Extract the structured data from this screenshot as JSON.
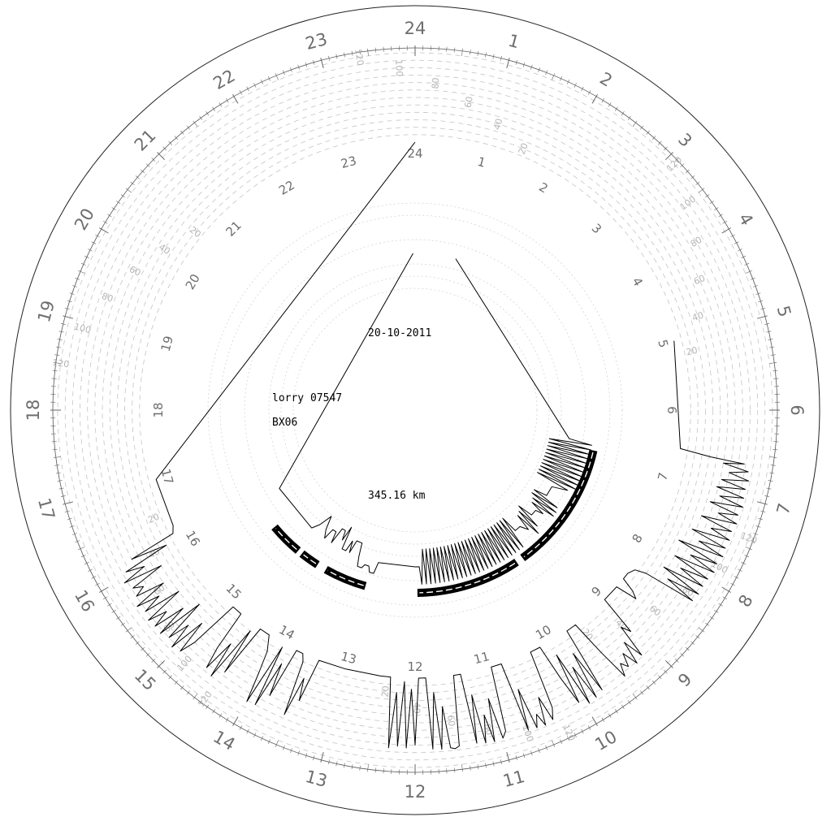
{
  "header": {
    "date": "20-10-2011"
  },
  "vehicle": {
    "name": "lorry 07547",
    "code": "BX06"
  },
  "summary": {
    "distance": "345.16 km"
  },
  "chart_data": {
    "type": "polar-line",
    "title": "",
    "time_axis": {
      "unit": "hour",
      "ticks": [
        1,
        2,
        3,
        4,
        5,
        6,
        7,
        8,
        9,
        10,
        11,
        12,
        13,
        14,
        15,
        16,
        17,
        18,
        19,
        20,
        21,
        22,
        23,
        24
      ]
    },
    "speed_axis": {
      "unit": "km/h",
      "range": [
        0,
        120
      ],
      "labels": [
        20,
        40,
        60,
        80,
        100,
        120
      ]
    },
    "series": [
      {
        "kind": "speed",
        "points": [
          [
            5.0,
            0
          ],
          [
            6.55,
            0
          ],
          [
            6.6,
            42
          ],
          [
            6.62,
            88
          ],
          [
            6.65,
            60
          ],
          [
            6.7,
            95
          ],
          [
            6.75,
            70
          ],
          [
            6.8,
            98
          ],
          [
            6.85,
            62
          ],
          [
            6.9,
            96
          ],
          [
            6.95,
            58
          ],
          [
            7.0,
            97
          ],
          [
            7.05,
            65
          ],
          [
            7.1,
            99
          ],
          [
            7.15,
            55
          ],
          [
            7.2,
            96
          ],
          [
            7.25,
            70
          ],
          [
            7.3,
            98
          ],
          [
            7.35,
            50
          ],
          [
            7.4,
            95
          ],
          [
            7.45,
            68
          ],
          [
            7.5,
            97
          ],
          [
            7.55,
            45
          ],
          [
            7.6,
            96
          ],
          [
            7.65,
            60
          ],
          [
            7.7,
            98
          ],
          [
            7.75,
            35
          ],
          [
            7.8,
            95
          ],
          [
            7.85,
            58
          ],
          [
            7.9,
            97
          ],
          [
            7.95,
            40
          ],
          [
            8.0,
            94
          ],
          [
            8.05,
            55
          ],
          [
            8.1,
            93
          ],
          [
            8.15,
            35
          ],
          [
            8.2,
            94
          ],
          [
            8.25,
            48
          ],
          [
            8.3,
            92
          ],
          [
            8.35,
            20
          ],
          [
            8.4,
            5
          ],
          [
            8.5,
            0
          ],
          [
            8.6,
            0
          ],
          [
            8.65,
            20
          ],
          [
            8.7,
            30
          ],
          [
            8.75,
            0
          ],
          [
            9.0,
            0
          ],
          [
            9.05,
            55
          ],
          [
            9.1,
            42
          ],
          [
            9.15,
            88
          ],
          [
            9.2,
            60
          ],
          [
            9.25,
            92
          ],
          [
            9.3,
            70
          ],
          [
            9.35,
            88
          ],
          [
            9.4,
            78
          ],
          [
            9.45,
            95
          ],
          [
            9.5,
            50
          ],
          [
            9.55,
            0
          ],
          [
            9.7,
            0
          ],
          [
            9.75,
            92
          ],
          [
            9.8,
            30
          ],
          [
            9.85,
            96
          ],
          [
            9.9,
            45
          ],
          [
            9.95,
            98
          ],
          [
            10.0,
            20
          ],
          [
            10.05,
            90
          ],
          [
            10.1,
            50
          ],
          [
            10.15,
            0
          ],
          [
            10.3,
            0
          ],
          [
            10.35,
            80
          ],
          [
            10.4,
            95
          ],
          [
            10.45,
            60
          ],
          [
            10.5,
            98
          ],
          [
            10.55,
            80
          ],
          [
            10.6,
            97
          ],
          [
            10.65,
            40
          ],
          [
            10.7,
            96
          ],
          [
            10.75,
            0
          ],
          [
            10.9,
            0
          ],
          [
            10.95,
            88
          ],
          [
            11.0,
            96
          ],
          [
            11.05,
            40
          ],
          [
            11.1,
            98
          ],
          [
            11.15,
            60
          ],
          [
            11.2,
            97
          ],
          [
            11.25,
            30
          ],
          [
            11.3,
            95
          ],
          [
            11.35,
            0
          ],
          [
            11.45,
            0
          ],
          [
            11.5,
            95
          ],
          [
            11.55,
            98
          ],
          [
            11.6,
            96
          ],
          [
            11.65,
            40
          ],
          [
            11.7,
            97
          ],
          [
            11.75,
            20
          ],
          [
            11.8,
            96
          ],
          [
            11.85,
            0
          ],
          [
            11.95,
            0
          ],
          [
            12.0,
            90
          ],
          [
            12.05,
            15
          ],
          [
            12.1,
            94
          ],
          [
            12.15,
            5
          ],
          [
            12.2,
            92
          ],
          [
            12.25,
            20
          ],
          [
            12.3,
            95
          ],
          [
            12.35,
            0
          ],
          [
            12.5,
            0
          ],
          [
            13.0,
            0
          ],
          [
            13.4,
            0
          ],
          [
            13.45,
            60
          ],
          [
            13.5,
            30
          ],
          [
            13.55,
            85
          ],
          [
            13.6,
            10
          ],
          [
            13.65,
            0
          ],
          [
            13.75,
            0
          ],
          [
            13.8,
            70
          ],
          [
            13.85,
            25
          ],
          [
            13.9,
            90
          ],
          [
            13.95,
            5
          ],
          [
            14.0,
            92
          ],
          [
            14.05,
            50
          ],
          [
            14.1,
            20
          ],
          [
            14.2,
            0
          ],
          [
            14.35,
            0
          ],
          [
            14.4,
            75
          ],
          [
            14.45,
            10
          ],
          [
            14.5,
            90
          ],
          [
            14.55,
            40
          ],
          [
            14.6,
            85
          ],
          [
            14.65,
            55
          ],
          [
            14.7,
            0
          ],
          [
            14.85,
            0
          ],
          [
            14.9,
            70
          ],
          [
            14.95,
            92
          ],
          [
            15.0,
            45
          ],
          [
            15.05,
            96
          ],
          [
            15.1,
            60
          ],
          [
            15.15,
            90
          ],
          [
            15.2,
            30
          ],
          [
            15.25,
            95
          ],
          [
            15.3,
            50
          ],
          [
            15.35,
            94
          ],
          [
            15.4,
            70
          ],
          [
            15.45,
            96
          ],
          [
            15.5,
            40
          ],
          [
            15.55,
            92
          ],
          [
            15.6,
            65
          ],
          [
            15.65,
            97
          ],
          [
            15.7,
            50
          ],
          [
            15.75,
            90
          ],
          [
            15.8,
            75
          ],
          [
            15.85,
            88
          ],
          [
            15.9,
            40
          ],
          [
            15.95,
            94
          ],
          [
            16.0,
            60
          ],
          [
            16.05,
            85
          ],
          [
            16.1,
            20
          ],
          [
            16.15,
            70
          ],
          [
            16.2,
            5
          ],
          [
            16.3,
            0
          ],
          [
            17.0,
            0
          ],
          [
            24.0,
            0
          ]
        ]
      },
      {
        "kind": "engine",
        "points": [
          [
            1.0,
            0
          ],
          [
            6.7,
            0
          ],
          [
            6.75,
            12
          ],
          [
            6.8,
            -10
          ],
          [
            6.85,
            12
          ],
          [
            6.9,
            -10
          ],
          [
            6.95,
            12
          ],
          [
            7.0,
            -10
          ],
          [
            7.05,
            12
          ],
          [
            7.1,
            -10
          ],
          [
            7.15,
            12
          ],
          [
            7.2,
            -10
          ],
          [
            7.25,
            12
          ],
          [
            7.3,
            -10
          ],
          [
            7.35,
            12
          ],
          [
            7.4,
            -10
          ],
          [
            7.45,
            12
          ],
          [
            7.5,
            -10
          ],
          [
            7.55,
            12
          ],
          [
            7.6,
            -10
          ],
          [
            7.65,
            12
          ],
          [
            7.7,
            -10
          ],
          [
            7.75,
            12
          ],
          [
            7.8,
            -10
          ],
          [
            7.85,
            8
          ],
          [
            7.95,
            0
          ],
          [
            8.2,
            0
          ],
          [
            8.25,
            -7
          ],
          [
            8.3,
            8
          ],
          [
            8.35,
            -7
          ],
          [
            8.4,
            9
          ],
          [
            8.45,
            -5
          ],
          [
            8.5,
            9
          ],
          [
            8.55,
            -4
          ],
          [
            8.6,
            4
          ],
          [
            8.65,
            0
          ],
          [
            8.8,
            0
          ],
          [
            8.85,
            -8
          ],
          [
            8.9,
            6
          ],
          [
            8.95,
            -6
          ],
          [
            9.0,
            9
          ],
          [
            9.05,
            -5
          ],
          [
            9.1,
            4
          ],
          [
            9.2,
            0
          ],
          [
            9.35,
            0
          ],
          [
            9.4,
            -9
          ],
          [
            9.45,
            9
          ],
          [
            9.5,
            -9
          ],
          [
            9.55,
            9
          ],
          [
            9.6,
            -9
          ],
          [
            9.65,
            9
          ],
          [
            9.7,
            -9
          ],
          [
            9.75,
            9
          ],
          [
            9.8,
            -9
          ],
          [
            9.85,
            9
          ],
          [
            9.9,
            -9
          ],
          [
            9.95,
            9
          ],
          [
            10.0,
            -9
          ],
          [
            10.05,
            9
          ],
          [
            10.1,
            -9
          ],
          [
            10.15,
            9
          ],
          [
            10.2,
            -9
          ],
          [
            10.25,
            9
          ],
          [
            10.3,
            -9
          ],
          [
            10.35,
            9
          ],
          [
            10.4,
            -9
          ],
          [
            10.45,
            9
          ],
          [
            10.5,
            -9
          ],
          [
            10.55,
            9
          ],
          [
            10.6,
            -9
          ],
          [
            10.65,
            9
          ],
          [
            10.7,
            -9
          ],
          [
            10.75,
            9
          ],
          [
            10.8,
            -9
          ],
          [
            10.85,
            9
          ],
          [
            10.9,
            -9
          ],
          [
            10.95,
            9
          ],
          [
            11.0,
            -9
          ],
          [
            11.05,
            9
          ],
          [
            11.1,
            -9
          ],
          [
            11.15,
            9
          ],
          [
            11.2,
            -9
          ],
          [
            11.25,
            9
          ],
          [
            11.3,
            -9
          ],
          [
            11.35,
            9
          ],
          [
            11.4,
            -9
          ],
          [
            11.45,
            9
          ],
          [
            11.5,
            -9
          ],
          [
            11.55,
            9
          ],
          [
            11.6,
            -9
          ],
          [
            11.65,
            9
          ],
          [
            11.7,
            -9
          ],
          [
            11.75,
            9
          ],
          [
            11.8,
            -9
          ],
          [
            11.85,
            9
          ],
          [
            11.9,
            0
          ],
          [
            12.0,
            0
          ],
          [
            12.9,
            0
          ],
          [
            12.95,
            6
          ],
          [
            13.05,
            6
          ],
          [
            13.1,
            3
          ],
          [
            13.2,
            3
          ],
          [
            13.25,
            5
          ],
          [
            13.35,
            5
          ],
          [
            13.4,
            0
          ],
          [
            13.45,
            -7
          ],
          [
            13.6,
            -7
          ],
          [
            13.65,
            0
          ],
          [
            13.7,
            -6
          ],
          [
            13.75,
            0
          ],
          [
            13.85,
            0
          ],
          [
            13.9,
            -12
          ],
          [
            13.95,
            -4
          ],
          [
            14.0,
            -9
          ],
          [
            14.1,
            -9
          ],
          [
            14.15,
            0
          ],
          [
            14.2,
            -6
          ],
          [
            14.3,
            -6
          ],
          [
            14.35,
            0
          ],
          [
            14.45,
            -4
          ],
          [
            14.55,
            -11
          ],
          [
            14.65,
            -4
          ],
          [
            14.75,
            0
          ],
          [
            16.0,
            0
          ],
          [
            23.95,
            0
          ]
        ]
      }
    ],
    "activity_bars": [
      {
        "start": 6.85,
        "end": 9.6
      },
      {
        "start": 9.75,
        "end": 11.95
      },
      {
        "start": 13.05,
        "end": 13.95
      },
      {
        "start": 14.15,
        "end": 14.55
      },
      {
        "start": 14.65,
        "end": 15.35
      }
    ]
  }
}
